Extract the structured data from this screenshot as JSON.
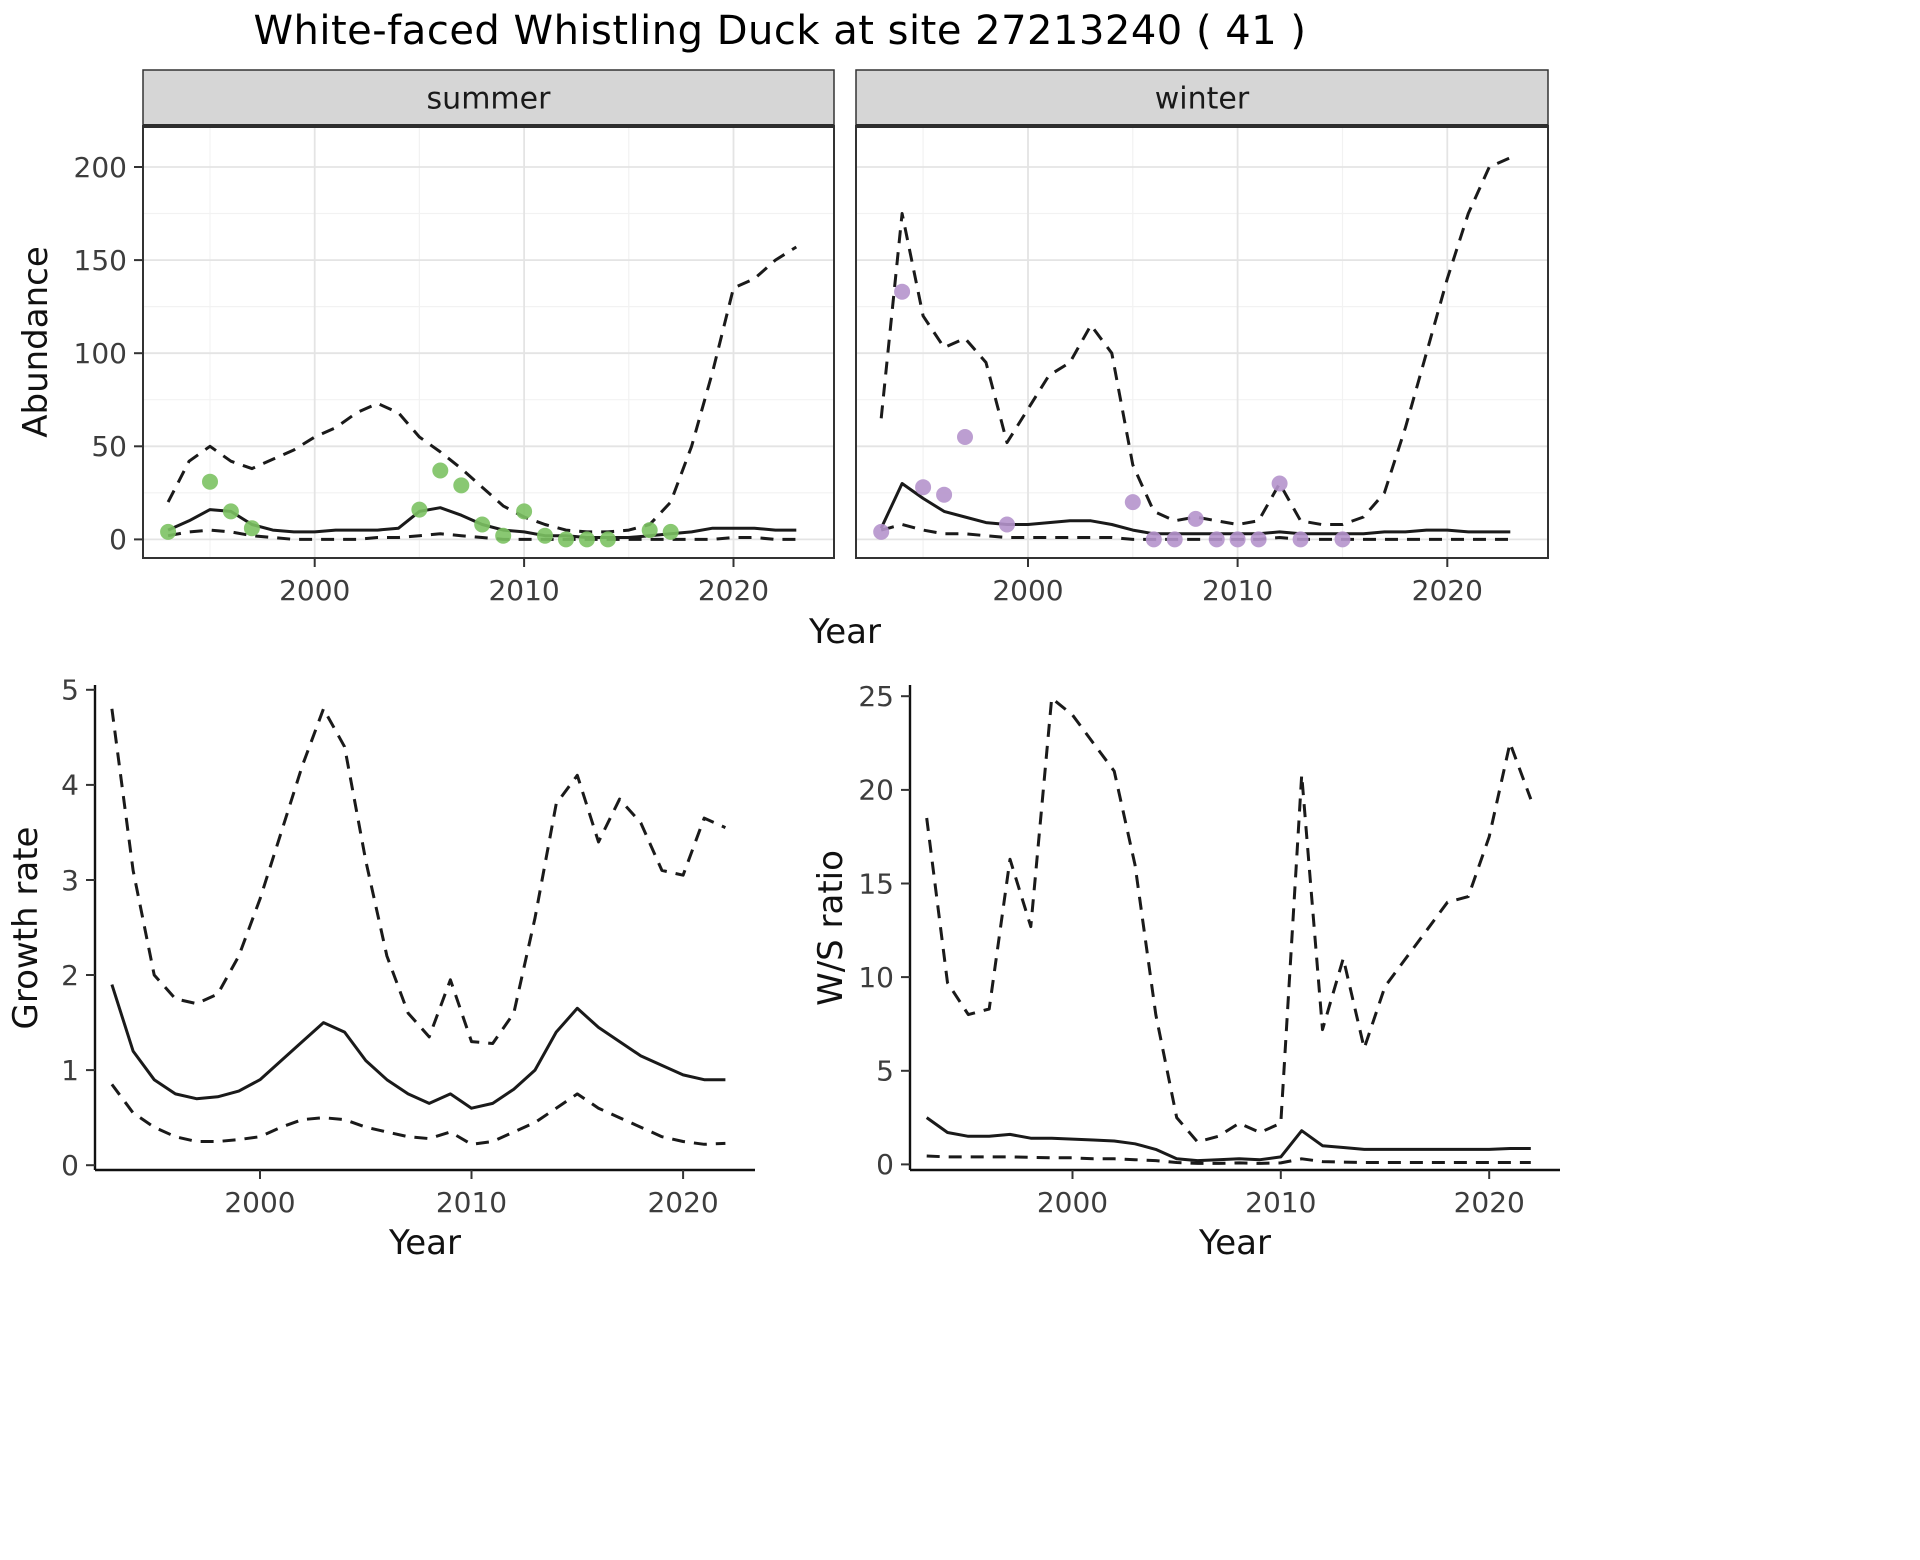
{
  "title": "White-faced Whistling Duck at site 27213240 ( 41 )",
  "colors": {
    "line": "#1a1a1a",
    "summer_points": "#7cc263",
    "winter_points": "#b594cc",
    "strip_bg": "#d6d6d6",
    "panel_border": "#333333",
    "grid_major": "#e4e4e4",
    "grid_minor": "#f2f2f2",
    "tick_text": "#3d3d3d"
  },
  "axis_labels": {
    "abundance": "Abundance",
    "year": "Year",
    "growth_rate": "Growth rate",
    "ws_ratio": "W/S ratio"
  },
  "chart_data": [
    {
      "id": "summer",
      "type": "line",
      "facet": "summer",
      "xlabel": "Year",
      "ylabel": "Abundance",
      "xlim": [
        1991.8,
        2024.8
      ],
      "ylim": [
        -10,
        222
      ],
      "xticks": [
        2000,
        2010,
        2020
      ],
      "yticks": [
        0,
        50,
        100,
        150,
        200
      ],
      "grid": true,
      "box": true,
      "x": [
        1993,
        1994,
        1995,
        1996,
        1997,
        1998,
        1999,
        2000,
        2001,
        2002,
        2003,
        2004,
        2005,
        2006,
        2007,
        2008,
        2009,
        2010,
        2011,
        2012,
        2013,
        2014,
        2015,
        2016,
        2017,
        2018,
        2019,
        2020,
        2021,
        2022,
        2023
      ],
      "series": [
        {
          "name": "median",
          "style": "solid",
          "values": [
            5,
            10,
            16,
            15,
            8,
            5,
            4,
            4,
            5,
            5,
            5,
            6,
            15,
            17,
            13,
            8,
            5,
            4,
            2,
            2,
            1,
            1,
            1,
            2,
            3,
            4,
            6,
            6,
            6,
            5,
            5
          ]
        },
        {
          "name": "upper_95ci",
          "style": "dashed",
          "values": [
            20,
            42,
            50,
            42,
            38,
            43,
            48,
            55,
            60,
            68,
            73,
            68,
            55,
            47,
            38,
            28,
            18,
            12,
            8,
            5,
            4,
            4,
            5,
            8,
            20,
            50,
            90,
            135,
            140,
            150,
            157
          ]
        },
        {
          "name": "lower_95ci",
          "style": "dashed",
          "values": [
            2,
            4,
            5,
            4,
            2,
            1,
            0,
            0,
            0,
            0,
            1,
            1,
            2,
            3,
            2,
            1,
            0,
            0,
            0,
            0,
            0,
            0,
            0,
            0,
            0,
            0,
            0,
            1,
            1,
            0,
            0
          ]
        }
      ],
      "points": {
        "name": "observed_counts",
        "color_key": "summer_points",
        "x": [
          1993,
          1995,
          1996,
          1997,
          2005,
          2006,
          2007,
          2008,
          2009,
          2010,
          2011,
          2012,
          2013,
          2014,
          2016,
          2017
        ],
        "y": [
          4,
          31,
          15,
          6,
          16,
          37,
          29,
          8,
          2,
          15,
          2,
          0,
          0,
          0,
          5,
          4
        ]
      }
    },
    {
      "id": "winter",
      "type": "line",
      "facet": "winter",
      "xlabel": "Year",
      "ylabel": "Abundance",
      "xlim": [
        1991.8,
        2024.8
      ],
      "ylim": [
        -10,
        222
      ],
      "xticks": [
        2000,
        2010,
        2020
      ],
      "yticks": [
        0,
        50,
        100,
        150,
        200
      ],
      "grid": true,
      "box": true,
      "x": [
        1993,
        1994,
        1995,
        1996,
        1997,
        1998,
        1999,
        2000,
        2001,
        2002,
        2003,
        2004,
        2005,
        2006,
        2007,
        2008,
        2009,
        2010,
        2011,
        2012,
        2013,
        2014,
        2015,
        2016,
        2017,
        2018,
        2019,
        2020,
        2021,
        2022,
        2023
      ],
      "series": [
        {
          "name": "median",
          "style": "solid",
          "values": [
            6,
            30,
            22,
            15,
            12,
            9,
            8,
            8,
            9,
            10,
            10,
            8,
            5,
            3,
            3,
            3,
            3,
            3,
            3,
            4,
            3,
            3,
            3,
            3,
            4,
            4,
            5,
            5,
            4,
            4,
            4
          ]
        },
        {
          "name": "upper_95ci",
          "style": "dashed",
          "values": [
            65,
            175,
            120,
            103,
            108,
            95,
            52,
            70,
            88,
            95,
            115,
            100,
            40,
            15,
            10,
            12,
            10,
            8,
            10,
            30,
            10,
            8,
            8,
            12,
            25,
            60,
            100,
            140,
            175,
            200,
            205
          ]
        },
        {
          "name": "lower_95ci",
          "style": "dashed",
          "values": [
            5,
            8,
            5,
            3,
            3,
            2,
            1,
            1,
            1,
            1,
            1,
            1,
            0,
            0,
            0,
            0,
            0,
            0,
            0,
            1,
            0,
            0,
            0,
            0,
            0,
            0,
            0,
            0,
            0,
            0,
            0
          ]
        }
      ],
      "points": {
        "name": "observed_counts",
        "color_key": "winter_points",
        "x": [
          1993,
          1994,
          1995,
          1996,
          1997,
          1999,
          2005,
          2006,
          2007,
          2008,
          2009,
          2010,
          2011,
          2012,
          2013,
          2015
        ],
        "y": [
          4,
          133,
          28,
          24,
          55,
          8,
          20,
          0,
          0,
          11,
          0,
          0,
          0,
          30,
          0,
          0
        ]
      }
    },
    {
      "id": "growth_rate",
      "type": "line",
      "xlabel": "Year",
      "ylabel": "Growth rate",
      "xlim": [
        1992.2,
        2023.4
      ],
      "ylim": [
        -0.05,
        5.05
      ],
      "xticks": [
        2000,
        2010,
        2020
      ],
      "yticks": [
        0,
        1,
        2,
        3,
        4,
        5
      ],
      "grid": false,
      "box": false,
      "x": [
        1993,
        1994,
        1995,
        1996,
        1997,
        1998,
        1999,
        2000,
        2001,
        2002,
        2003,
        2004,
        2005,
        2006,
        2007,
        2008,
        2009,
        2010,
        2011,
        2012,
        2013,
        2014,
        2015,
        2016,
        2017,
        2018,
        2019,
        2020,
        2021,
        2022
      ],
      "series": [
        {
          "name": "median",
          "style": "solid",
          "values": [
            1.9,
            1.2,
            0.9,
            0.75,
            0.7,
            0.72,
            0.78,
            0.9,
            1.1,
            1.3,
            1.5,
            1.4,
            1.1,
            0.9,
            0.75,
            0.65,
            0.75,
            0.6,
            0.65,
            0.8,
            1.0,
            1.4,
            1.65,
            1.45,
            1.3,
            1.15,
            1.05,
            0.95,
            0.9,
            0.9
          ]
        },
        {
          "name": "upper_95ci",
          "style": "dashed",
          "values": [
            4.8,
            3.1,
            2.0,
            1.75,
            1.7,
            1.8,
            2.2,
            2.8,
            3.5,
            4.2,
            4.8,
            4.4,
            3.2,
            2.2,
            1.6,
            1.35,
            1.95,
            1.3,
            1.28,
            1.6,
            2.6,
            3.8,
            4.1,
            3.4,
            3.85,
            3.6,
            3.1,
            3.05,
            3.65,
            3.55
          ]
        },
        {
          "name": "lower_95ci",
          "style": "dashed",
          "values": [
            0.85,
            0.55,
            0.4,
            0.3,
            0.25,
            0.25,
            0.27,
            0.3,
            0.4,
            0.48,
            0.5,
            0.48,
            0.4,
            0.35,
            0.3,
            0.28,
            0.35,
            0.22,
            0.25,
            0.35,
            0.45,
            0.6,
            0.75,
            0.6,
            0.5,
            0.4,
            0.3,
            0.25,
            0.22,
            0.23
          ]
        }
      ]
    },
    {
      "id": "ws_ratio",
      "type": "line",
      "xlabel": "Year",
      "ylabel": "W/S ratio",
      "xlim": [
        1992.2,
        2023.4
      ],
      "ylim": [
        -0.3,
        25.6
      ],
      "xticks": [
        2000,
        2010,
        2020
      ],
      "yticks": [
        0,
        5,
        10,
        15,
        20,
        25
      ],
      "grid": false,
      "box": false,
      "x": [
        1993,
        1994,
        1995,
        1996,
        1997,
        1998,
        1999,
        2000,
        2001,
        2002,
        2003,
        2004,
        2005,
        2006,
        2007,
        2008,
        2009,
        2010,
        2011,
        2012,
        2013,
        2014,
        2015,
        2016,
        2017,
        2018,
        2019,
        2020,
        2021,
        2022
      ],
      "series": [
        {
          "name": "median",
          "style": "solid",
          "values": [
            2.5,
            1.7,
            1.5,
            1.5,
            1.6,
            1.4,
            1.4,
            1.35,
            1.3,
            1.25,
            1.1,
            0.8,
            0.3,
            0.2,
            0.25,
            0.3,
            0.25,
            0.4,
            1.8,
            1.0,
            0.9,
            0.8,
            0.8,
            0.8,
            0.8,
            0.8,
            0.8,
            0.8,
            0.85,
            0.85
          ]
        },
        {
          "name": "upper_95ci",
          "style": "dashed",
          "values": [
            18.5,
            9.7,
            8.0,
            8.3,
            16.3,
            12.7,
            24.9,
            24.0,
            22.5,
            21.0,
            16.0,
            8.0,
            2.5,
            1.2,
            1.5,
            2.2,
            1.7,
            2.2,
            20.8,
            7.2,
            11.0,
            6.2,
            9.5,
            11.0,
            12.5,
            14.0,
            14.3,
            17.5,
            22.5,
            19.5
          ]
        },
        {
          "name": "lower_95ci",
          "style": "dashed",
          "values": [
            0.45,
            0.4,
            0.4,
            0.4,
            0.4,
            0.38,
            0.35,
            0.35,
            0.3,
            0.3,
            0.25,
            0.2,
            0.1,
            0.05,
            0.05,
            0.08,
            0.05,
            0.08,
            0.3,
            0.15,
            0.12,
            0.1,
            0.1,
            0.1,
            0.1,
            0.1,
            0.1,
            0.1,
            0.1,
            0.1
          ]
        }
      ]
    }
  ]
}
